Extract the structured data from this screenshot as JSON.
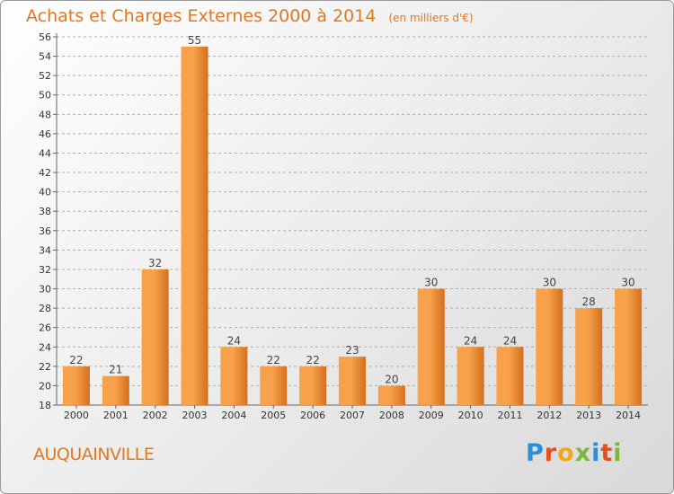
{
  "header": {
    "title": "Achats et Charges Externes 2000 à 2014",
    "unit_note": "(en milliers d'€)"
  },
  "footer": {
    "city": "AUQUAINVILLE",
    "logo": [
      "P",
      "r",
      "o",
      "x",
      "i",
      "t",
      "i"
    ]
  },
  "colors": {
    "title": "#e07820",
    "bar_light": "#f7a24a",
    "bar_dark": "#d4701f",
    "logo": [
      "#2b8fd6",
      "#e84d1c",
      "#f2a81d",
      "#7ab83a",
      "#2b8fd6",
      "#e84d1c",
      "#7ab83a"
    ]
  },
  "chart_data": {
    "type": "bar",
    "categories": [
      "2000",
      "2001",
      "2002",
      "2003",
      "2004",
      "2005",
      "2006",
      "2007",
      "2008",
      "2009",
      "2010",
      "2011",
      "2012",
      "2013",
      "2014"
    ],
    "values": [
      22,
      21,
      32,
      55,
      24,
      22,
      22,
      23,
      20,
      30,
      24,
      24,
      30,
      28,
      30
    ],
    "data_labels": [
      "22",
      "21",
      "32",
      "55",
      "24",
      "22",
      "22",
      "23",
      "20",
      "30",
      "24",
      "24",
      "30",
      "28",
      "30"
    ],
    "yticks": [
      "18",
      "20",
      "22",
      "24",
      "26",
      "28",
      "30",
      "32",
      "34",
      "36",
      "38",
      "40",
      "42",
      "44",
      "46",
      "48",
      "50",
      "52",
      "54",
      "56"
    ],
    "ylim": [
      18,
      56
    ],
    "grid": "horizontal-dashed"
  }
}
